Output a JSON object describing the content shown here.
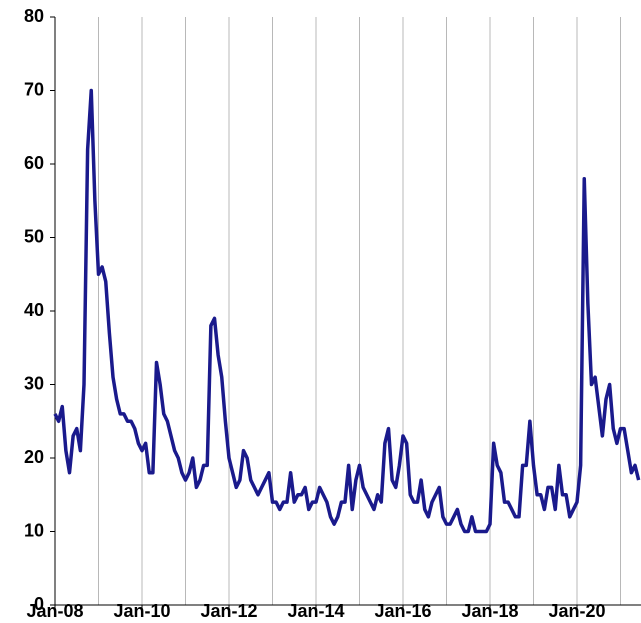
{
  "chart_data": {
    "type": "line",
    "x": [
      "Jan-08",
      "Feb-08",
      "Mar-08",
      "Apr-08",
      "May-08",
      "Jun-08",
      "Jul-08",
      "Aug-08",
      "Sep-08",
      "Oct-08",
      "Nov-08",
      "Dec-08",
      "Jan-09",
      "Feb-09",
      "Mar-09",
      "Apr-09",
      "May-09",
      "Jun-09",
      "Jul-09",
      "Aug-09",
      "Sep-09",
      "Oct-09",
      "Nov-09",
      "Dec-09",
      "Jan-10",
      "Feb-10",
      "Mar-10",
      "Apr-10",
      "May-10",
      "Jun-10",
      "Jul-10",
      "Aug-10",
      "Sep-10",
      "Oct-10",
      "Nov-10",
      "Dec-10",
      "Jan-11",
      "Feb-11",
      "Mar-11",
      "Apr-11",
      "May-11",
      "Jun-11",
      "Jul-11",
      "Aug-11",
      "Sep-11",
      "Oct-11",
      "Nov-11",
      "Dec-11",
      "Jan-12",
      "Feb-12",
      "Mar-12",
      "Apr-12",
      "May-12",
      "Jun-12",
      "Jul-12",
      "Aug-12",
      "Sep-12",
      "Oct-12",
      "Nov-12",
      "Dec-12",
      "Jan-13",
      "Feb-13",
      "Mar-13",
      "Apr-13",
      "May-13",
      "Jun-13",
      "Jul-13",
      "Aug-13",
      "Sep-13",
      "Oct-13",
      "Nov-13",
      "Dec-13",
      "Jan-14",
      "Feb-14",
      "Mar-14",
      "Apr-14",
      "May-14",
      "Jun-14",
      "Jul-14",
      "Aug-14",
      "Sep-14",
      "Oct-14",
      "Nov-14",
      "Dec-14",
      "Jan-15",
      "Feb-15",
      "Mar-15",
      "Apr-15",
      "May-15",
      "Jun-15",
      "Jul-15",
      "Aug-15",
      "Sep-15",
      "Oct-15",
      "Nov-15",
      "Dec-15",
      "Jan-16",
      "Feb-16",
      "Mar-16",
      "Apr-16",
      "May-16",
      "Jun-16",
      "Jul-16",
      "Aug-16",
      "Sep-16",
      "Oct-16",
      "Nov-16",
      "Dec-16",
      "Jan-17",
      "Feb-17",
      "Mar-17",
      "Apr-17",
      "May-17",
      "Jun-17",
      "Jul-17",
      "Aug-17",
      "Sep-17",
      "Oct-17",
      "Nov-17",
      "Dec-17",
      "Jan-18",
      "Feb-18",
      "Mar-18",
      "Apr-18",
      "May-18",
      "Jun-18",
      "Jul-18",
      "Aug-18",
      "Sep-18",
      "Oct-18",
      "Nov-18",
      "Dec-18",
      "Jan-19",
      "Feb-19",
      "Mar-19",
      "Apr-19",
      "May-19",
      "Jun-19",
      "Jul-19",
      "Aug-19",
      "Sep-19",
      "Oct-19",
      "Nov-19",
      "Dec-19",
      "Jan-20",
      "Feb-20",
      "Mar-20",
      "Apr-20",
      "May-20",
      "Jun-20",
      "Jul-20",
      "Aug-20",
      "Sep-20",
      "Oct-20",
      "Nov-20",
      "Dec-20",
      "Jan-21",
      "Feb-21",
      "Mar-21",
      "Apr-21",
      "May-21",
      "Jun-21"
    ],
    "series": [
      {
        "color": "#1a1a8c",
        "values": [
          26,
          25,
          27,
          21,
          18,
          23,
          24,
          21,
          30,
          62,
          70,
          55,
          45,
          46,
          44,
          37,
          31,
          28,
          26,
          26,
          25,
          25,
          24,
          22,
          21,
          22,
          18,
          18,
          33,
          30,
          26,
          25,
          23,
          21,
          20,
          18,
          17,
          18,
          20,
          16,
          17,
          19,
          19,
          38,
          39,
          34,
          31,
          25,
          20,
          18,
          16,
          17,
          21,
          20,
          17,
          16,
          15,
          16,
          17,
          18,
          14,
          14,
          13,
          14,
          14,
          18,
          14,
          15,
          15,
          16,
          13,
          14,
          14,
          16,
          15,
          14,
          12,
          11,
          12,
          14,
          14,
          19,
          13,
          17,
          19,
          16,
          15,
          14,
          13,
          15,
          14,
          22,
          24,
          17,
          16,
          19,
          23,
          22,
          15,
          14,
          14,
          17,
          13,
          12,
          14,
          15,
          16,
          12,
          11,
          11,
          12,
          13,
          11,
          10,
          10,
          12,
          10,
          10,
          10,
          10,
          11,
          22,
          19,
          18,
          14,
          14,
          13,
          12,
          12,
          19,
          19,
          25,
          19,
          15,
          15,
          13,
          16,
          16,
          13,
          19,
          15,
          15,
          12,
          13,
          14,
          19,
          58,
          41,
          30,
          31,
          27,
          23,
          28,
          30,
          24,
          22,
          24,
          24,
          21,
          18,
          19,
          17
        ]
      }
    ],
    "xticks": [
      "Jan-08",
      "Jan-10",
      "Jan-12",
      "Jan-14",
      "Jan-16",
      "Jan-18",
      "Jan-20"
    ],
    "ylim": [
      0,
      80
    ],
    "yticks": [
      0,
      10,
      20,
      30,
      40,
      50,
      60,
      70,
      80
    ],
    "grid": "x"
  }
}
